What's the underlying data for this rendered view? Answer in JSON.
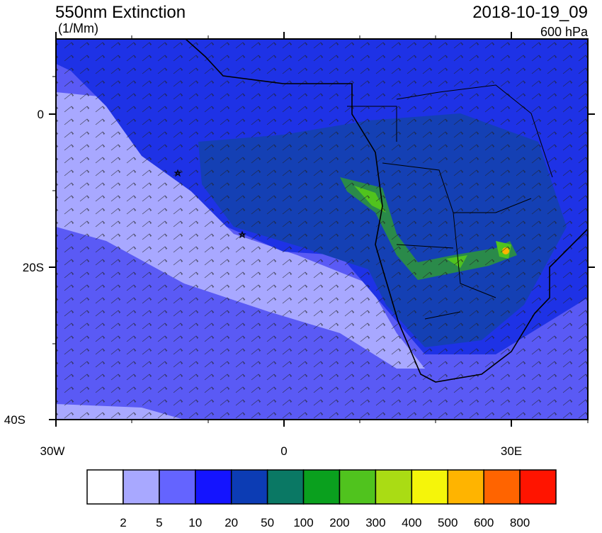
{
  "header": {
    "title": "550nm Extinction",
    "units": "(1/Mm)",
    "date": "2018-10-19_09",
    "level": "600 hPa"
  },
  "map": {
    "lat_labels": [
      "0",
      "20S",
      "40S"
    ],
    "lon_labels": [
      "30W",
      "0",
      "30E"
    ]
  },
  "colorbar": {
    "colors": [
      "#ffffff",
      "#a8a8ff",
      "#6464ff",
      "#1414ff",
      "#0c3cb4",
      "#0a7864",
      "#0aa01e",
      "#50c31e",
      "#aadc14",
      "#f5f50a",
      "#ffb400",
      "#ff6400",
      "#ff1400"
    ],
    "labels": [
      "2",
      "5",
      "10",
      "20",
      "50",
      "100",
      "200",
      "300",
      "400",
      "500",
      "600",
      "800"
    ]
  }
}
